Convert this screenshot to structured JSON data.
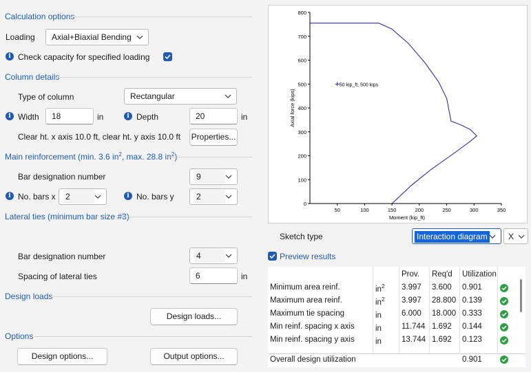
{
  "calc": {
    "title": "Calculation options",
    "loading_label": "Loading",
    "loading_value": "Axial+Biaxial Bending",
    "check_capacity_label": "Check capacity for specified loading",
    "check_capacity_checked": true
  },
  "column": {
    "title": "Column details",
    "type_label": "Type of column",
    "type_value": "Rectangular",
    "width_label": "Width",
    "width_value": "18",
    "width_unit": "in",
    "depth_label": "Depth",
    "depth_value": "20",
    "depth_unit": "in",
    "clear_ht": "Clear ht. x axis 10.0 ft, clear ht. y axis 10.0 ft",
    "properties_button": "Properties..."
  },
  "main_reinf": {
    "title_prefix": "Main reinforcement (min. 3.6 in",
    "title_sup1": "2",
    "title_mid": ", max. 28.8 in",
    "title_sup2": "2",
    "title_suffix": ")",
    "bar_label": "Bar designation number",
    "bar_value": "9",
    "nbx_label": "No. bars x",
    "nbx_value": "2",
    "nby_label": "No. bars y",
    "nby_value": "2"
  },
  "ties": {
    "title": "Lateral ties (minimum bar size #3)",
    "bar_label": "Bar designation number",
    "bar_value": "4",
    "spacing_label": "Spacing of lateral ties",
    "spacing_value": "6",
    "spacing_unit": "in"
  },
  "design_loads": {
    "title": "Design loads",
    "button": "Design loads..."
  },
  "options": {
    "title": "Options",
    "design_button": "Design options...",
    "output_button": "Output options..."
  },
  "sketch": {
    "label": "Sketch type",
    "value": "Interaction diagram",
    "axis_value": "X"
  },
  "preview": {
    "label": "Preview results",
    "checked": true
  },
  "results": {
    "headers": [
      "",
      "",
      "Prov.",
      "Req'd",
      "Utilization"
    ],
    "rows": [
      {
        "name": "Minimum area reinf.",
        "unit": "in",
        "sup": "2",
        "prov": "3.997",
        "req": "3.600",
        "util": "0.901"
      },
      {
        "name": "Maximum area reinf.",
        "unit": "in",
        "sup": "2",
        "prov": "3.997",
        "req": "28.800",
        "util": "0.139"
      },
      {
        "name": "Maximum tie spacing",
        "unit": "in",
        "sup": "",
        "prov": "6.000",
        "req": "18.000",
        "util": "0.333"
      },
      {
        "name": "Min reinf. spacing x axis",
        "unit": "in",
        "sup": "",
        "prov": "11.744",
        "req": "1.692",
        "util": "0.144"
      },
      {
        "name": "Min reinf. spacing y axis",
        "unit": "in",
        "sup": "",
        "prov": "13.744",
        "req": "1.692",
        "util": "0.123"
      }
    ],
    "overall_label": "Overall design utilization",
    "overall_value": "0.901"
  },
  "chart_data": {
    "type": "line",
    "xlabel": "Moment (kip_ft)",
    "ylabel": "Axial force (kips)",
    "xlim": [
      0,
      350
    ],
    "ylim": [
      0,
      800
    ],
    "xticks": [
      "50",
      "100",
      "150",
      "200",
      "250",
      "300",
      "350"
    ],
    "yticks": [
      "0",
      "100",
      "200",
      "300",
      "400",
      "500",
      "600",
      "700",
      "800"
    ],
    "series": [
      {
        "x": [
          0,
          126,
          150,
          180,
          210,
          235,
          250,
          258,
          275,
          293,
          305,
          290,
          260,
          220,
          185,
          150
        ],
        "y": [
          755,
          755,
          730,
          670,
          590,
          510,
          440,
          345,
          330,
          310,
          283,
          255,
          205,
          140,
          75,
          0
        ]
      }
    ],
    "point": {
      "x": 50,
      "y": 500,
      "label": "50 kip_ft, 500 kips"
    },
    "colors": {
      "line": "#1a1aa8",
      "point": "#1a1aa8"
    },
    "grid": false
  },
  "colors": {
    "accent": "#1f5bb5",
    "ok": "#2f9e44"
  }
}
